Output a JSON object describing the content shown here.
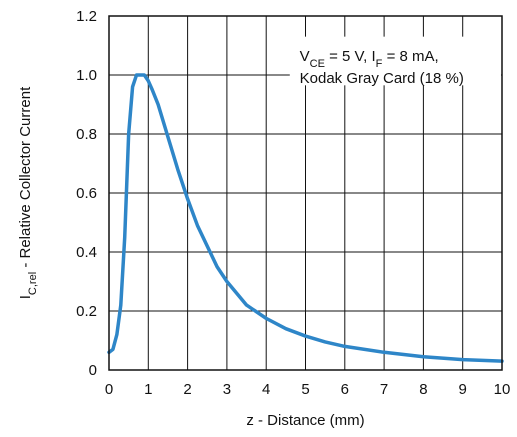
{
  "chart_data": {
    "type": "line",
    "title": "",
    "xlabel": "z - Distance (mm)",
    "ylabel": {
      "main": "I",
      "sub": "C,rel",
      "rest": " - Relative Collector Current"
    },
    "xlim": [
      0,
      10
    ],
    "ylim": [
      0,
      1.2
    ],
    "xticks": [
      "0",
      "1",
      "2",
      "3",
      "4",
      "5",
      "6",
      "7",
      "8",
      "9",
      "10"
    ],
    "yticks": [
      "0",
      "0.2",
      "0.4",
      "0.6",
      "0.8",
      "1.0",
      "1.2"
    ],
    "grid": true,
    "series": [
      {
        "color": "#2e86c8",
        "x": [
          0.0,
          0.1,
          0.2,
          0.3,
          0.4,
          0.5,
          0.6,
          0.7,
          0.8,
          0.9,
          1.0,
          1.1,
          1.25,
          1.5,
          1.75,
          2.0,
          2.25,
          2.5,
          2.75,
          3.0,
          3.5,
          4.0,
          4.5,
          5.0,
          5.5,
          6.0,
          7.0,
          8.0,
          9.0,
          10.0
        ],
        "y": [
          0.06,
          0.07,
          0.12,
          0.22,
          0.45,
          0.8,
          0.96,
          1.0,
          1.0,
          1.0,
          0.98,
          0.95,
          0.9,
          0.79,
          0.68,
          0.58,
          0.49,
          0.42,
          0.35,
          0.3,
          0.22,
          0.175,
          0.14,
          0.115,
          0.095,
          0.08,
          0.06,
          0.045,
          0.035,
          0.03
        ]
      }
    ],
    "annotation": {
      "line1": [
        {
          "t": "V",
          "sub": false
        },
        {
          "t": "CE",
          "sub": true
        },
        {
          "t": " = 5 V, I",
          "sub": false
        },
        {
          "t": "F",
          "sub": true
        },
        {
          "t": " = 8 mA,",
          "sub": false
        }
      ],
      "line2": "Kodak Gray Card (18 %)"
    }
  }
}
